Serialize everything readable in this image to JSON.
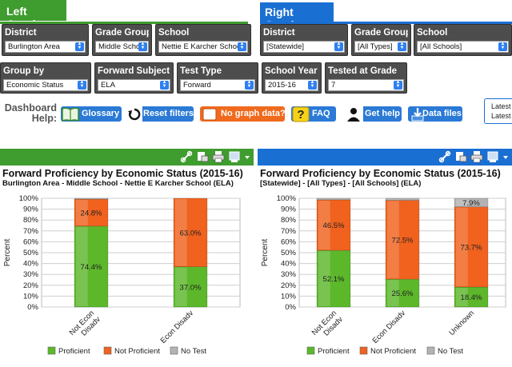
{
  "left": {
    "tab_label": "Left Graph",
    "filters": {
      "district": {
        "label": "District",
        "value": "Burlington Area"
      },
      "grade_group": {
        "label": "Grade Group",
        "value": "Middle School"
      },
      "school": {
        "label": "School",
        "value": "Nettie E Karcher School"
      }
    }
  },
  "right": {
    "tab_label": "Right Graph",
    "filters": {
      "district": {
        "label": "District",
        "value": "[Statewide]"
      },
      "grade_group": {
        "label": "Grade Group",
        "value": "[All Types]"
      },
      "school": {
        "label": "School",
        "value": "[All Schools]"
      }
    }
  },
  "common_filters": {
    "group_by": {
      "label": "Group by",
      "value": "Economic Status"
    },
    "forward_subject": {
      "label": "Forward Subject",
      "value": "ELA"
    },
    "test_type": {
      "label": "Test Type",
      "value": "Forward"
    },
    "school_year": {
      "label": "School Year",
      "value": "2015-16"
    },
    "tested_grade": {
      "label": "Tested at Grade",
      "value": "7"
    }
  },
  "help": {
    "label_line1": "Dashboard",
    "label_line2": "Help:",
    "glossary": "Glossary",
    "reset": "Reset filters",
    "no_data": "No graph data?",
    "faq": "FAQ",
    "get_help": "Get help",
    "data_files": "Data files",
    "latest_line1": "Latest",
    "latest_line2": "Latest"
  },
  "colors": {
    "left_accent": "#3f9c2f",
    "right_accent": "#1a6fd3",
    "proficient": "#5cb82a",
    "not_proficient": "#f0621e",
    "no_test": "#b3b3b3"
  },
  "chart_data": [
    {
      "type": "bar",
      "stacked": true,
      "title": "Forward Proficiency by Economic Status (2015-16)",
      "subtitle": "Burlington Area - Middle School - Nettie E Karcher School (ELA)",
      "ylabel": "Percent",
      "ylim": [
        0,
        100
      ],
      "yticks": [
        "0%",
        "10%",
        "20%",
        "30%",
        "40%",
        "50%",
        "60%",
        "70%",
        "80%",
        "90%",
        "100%"
      ],
      "categories": [
        [
          "Not Econ",
          "Disadv"
        ],
        [
          "Econ Disadv"
        ]
      ],
      "series": [
        {
          "name": "Proficient",
          "values": [
            74.4,
            37.0
          ],
          "labels": [
            "74.4%",
            "37.0%"
          ]
        },
        {
          "name": "Not Proficient",
          "values": [
            24.8,
            63.0
          ],
          "labels": [
            "24.8%",
            "63.0%"
          ]
        },
        {
          "name": "No Test",
          "values": [
            0.8,
            0
          ],
          "labels": [
            "",
            ""
          ]
        }
      ],
      "legend": [
        "Proficient",
        "Not Proficient",
        "No Test"
      ]
    },
    {
      "type": "bar",
      "stacked": true,
      "title": "Forward Proficiency by Economic Status (2015-16)",
      "subtitle": "[Statewide] - [All Types] - [All Schools] (ELA)",
      "ylabel": "Percent",
      "ylim": [
        0,
        100
      ],
      "yticks": [
        "0%",
        "10%",
        "20%",
        "30%",
        "40%",
        "50%",
        "60%",
        "70%",
        "80%",
        "90%",
        "100%"
      ],
      "categories": [
        [
          "Not Econ",
          "Disadv"
        ],
        [
          "Econ Disadv"
        ],
        [
          "Unknown"
        ]
      ],
      "series": [
        {
          "name": "Proficient",
          "values": [
            52.1,
            25.6,
            18.4
          ],
          "labels": [
            "52.1%",
            "25.6%",
            "18.4%"
          ]
        },
        {
          "name": "Not Proficient",
          "values": [
            46.5,
            72.5,
            73.7
          ],
          "labels": [
            "46.5%",
            "72.5%",
            "73.7%"
          ]
        },
        {
          "name": "No Test",
          "values": [
            1.4,
            1.9,
            7.9
          ],
          "labels": [
            "",
            "",
            "7.9%"
          ]
        }
      ],
      "legend": [
        "Proficient",
        "Not Proficient",
        "No Test"
      ]
    }
  ]
}
